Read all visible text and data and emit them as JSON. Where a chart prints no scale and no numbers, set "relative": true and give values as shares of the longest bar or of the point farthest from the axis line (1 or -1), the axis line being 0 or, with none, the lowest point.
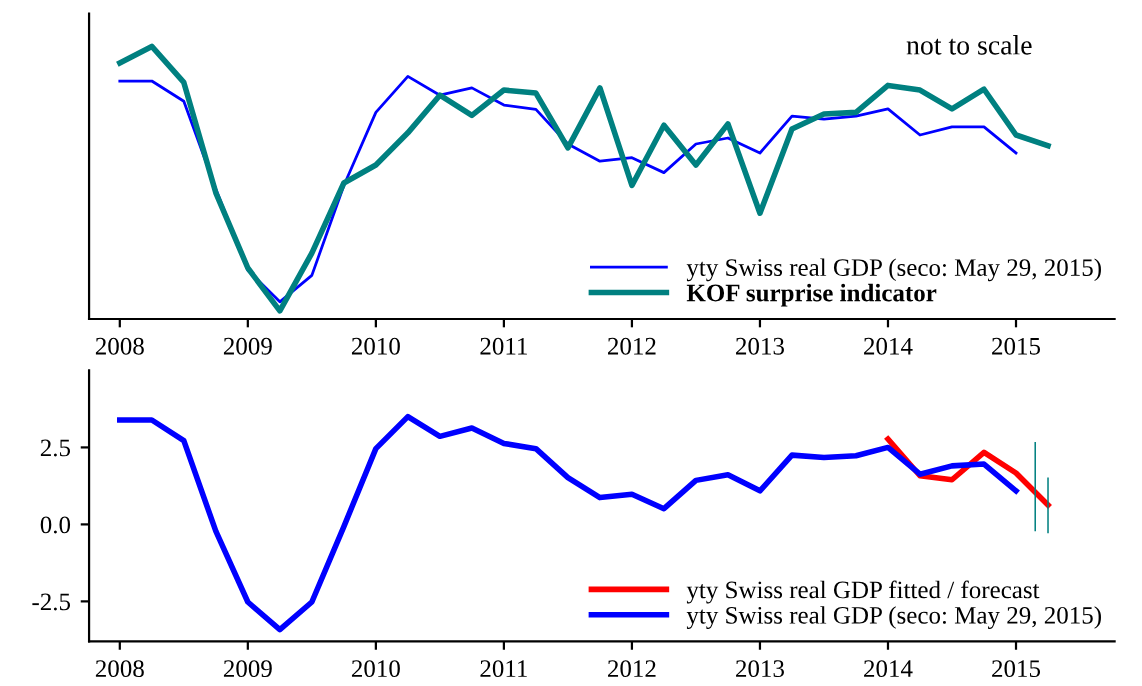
{
  "chart_data": [
    {
      "type": "line",
      "relative": true,
      "annotations": [
        "not to scale"
      ],
      "legend": "bottom right",
      "x": [
        2008,
        2008.25,
        2008.5,
        2008.75,
        2009,
        2009.25,
        2009.5,
        2009.75,
        2010,
        2010.25,
        2010.5,
        2010.75,
        2011,
        2011.25,
        2011.5,
        2011.75,
        2012,
        2012.25,
        2012.5,
        2012.75,
        2013,
        2013.25,
        2013.5,
        2013.75,
        2014,
        2014.25,
        2014.5,
        2014.75,
        2015,
        2015.25
      ],
      "xlim": [
        2007.76,
        2015.77
      ],
      "xticks": [
        2008,
        2009,
        2010,
        2011,
        2012,
        2013,
        2014,
        2015
      ],
      "series": [
        {
          "name": "yty Swiss real GDP (seco: May 29, 2015)",
          "color": "#0000ff",
          "values": [
            0.873,
            0.873,
            0.799,
            0.477,
            0.179,
            0.063,
            0.16,
            0.49,
            0.758,
            0.89,
            0.821,
            0.848,
            0.785,
            0.769,
            0.642,
            0.579,
            0.592,
            0.537,
            0.642,
            0.664,
            0.609,
            0.744,
            0.733,
            0.744,
            0.771,
            0.675,
            0.705,
            0.705,
            0.609,
            null
          ]
        },
        {
          "name": "KOF surprise indicator",
          "color": "#008080",
          "values": [
            0.939,
            1.0,
            0.868,
            0.463,
            0.187,
            0.03,
            0.242,
            0.499,
            0.565,
            0.683,
            0.821,
            0.747,
            0.84,
            0.829,
            0.628,
            0.848,
            0.49,
            0.711,
            0.565,
            0.716,
            0.388,
            0.697,
            0.752,
            0.758,
            0.857,
            0.84,
            0.771,
            0.843,
            0.675,
            0.636
          ]
        }
      ]
    },
    {
      "type": "line",
      "legend": "bottom right",
      "x": [
        2008,
        2008.25,
        2008.5,
        2008.75,
        2009,
        2009.25,
        2009.5,
        2009.75,
        2010,
        2010.25,
        2010.5,
        2010.75,
        2011,
        2011.25,
        2011.5,
        2011.75,
        2012,
        2012.25,
        2012.5,
        2012.75,
        2013,
        2013.25,
        2013.5,
        2013.75,
        2014,
        2014.25,
        2014.5,
        2014.75,
        2015
      ],
      "xlim": [
        2007.76,
        2015.77
      ],
      "xticks": [
        2008,
        2009,
        2010,
        2011,
        2012,
        2013,
        2014,
        2015
      ],
      "ylim": [
        -3.8,
        5.0
      ],
      "yticks": [
        {
          "value": -2.5,
          "label": "-2.5"
        },
        {
          "value": 0,
          "label": "0.0"
        },
        {
          "value": 2.5,
          "label": "2.5"
        }
      ],
      "series": [
        {
          "name": "yty Swiss real GDP fitted / forecast",
          "color": "#ff0000",
          "x": [
            2014,
            2014.25,
            2014.5,
            2014.75,
            2015,
            2015.25
          ],
          "values": [
            2.77,
            1.58,
            1.45,
            2.34,
            1.67,
            0.63
          ]
        },
        {
          "name": "yty Swiss real GDP (seco: May 29, 2015)",
          "color": "#0000ff",
          "values": [
            3.39,
            3.39,
            2.72,
            -0.22,
            -2.52,
            -3.42,
            -2.52,
            -0.07,
            2.46,
            3.5,
            2.86,
            3.13,
            2.63,
            2.46,
            1.52,
            0.87,
            0.98,
            0.51,
            1.43,
            1.61,
            1.09,
            2.25,
            2.17,
            2.23,
            2.5,
            1.63,
            1.9,
            1.96,
            1.09
          ]
        },
        {
          "type": "bar",
          "color": "#008080",
          "x": [
            2015.15,
            2015.25
          ],
          "base": [
            -0.22,
            -0.29
          ],
          "values": [
            2.9,
            1.81
          ]
        }
      ]
    }
  ]
}
